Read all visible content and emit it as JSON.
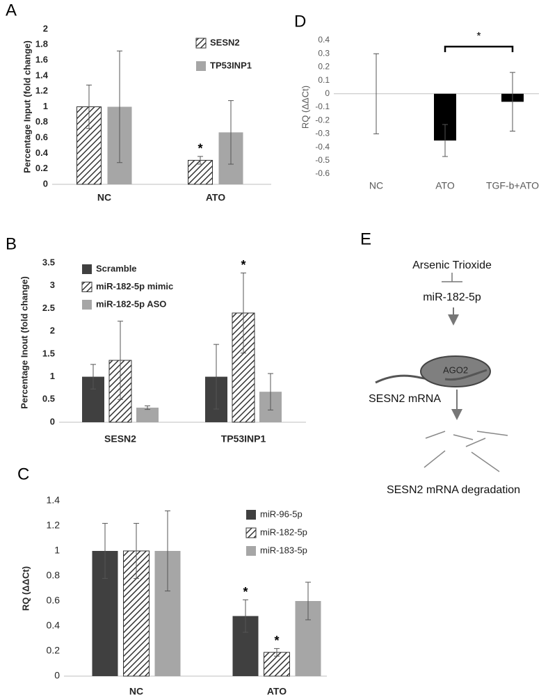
{
  "chart_data": [
    {
      "type": "bar",
      "panel": "A",
      "ylabel": "Percentage Input (fold change)",
      "categories": [
        "NC",
        "ATO"
      ],
      "series": [
        {
          "name": "SESN2",
          "color": "#333333",
          "hatch": true,
          "values": [
            1,
            0.31
          ],
          "errors": [
            0.28,
            0.05
          ]
        },
        {
          "name": "TP53INP1",
          "color": "#a6a6a6",
          "values": [
            1,
            0.67
          ],
          "errors": [
            0.72,
            0.41
          ]
        }
      ],
      "ylim": [
        0,
        2
      ],
      "yticks": [
        0,
        0.2,
        0.4,
        0.6,
        0.8,
        1,
        1.2,
        1.4,
        1.6,
        1.8,
        2
      ],
      "grid": false,
      "annotations": [
        "*"
      ]
    },
    {
      "type": "bar",
      "panel": "B",
      "ylabel": "Percentage Inout (fold change)",
      "categories": [
        "SESN2",
        "TP53INP1"
      ],
      "series": [
        {
          "name": "Scramble",
          "color": "#404040",
          "values": [
            1,
            1
          ],
          "errors": [
            0.27,
            0.71
          ]
        },
        {
          "name": "miR-182-5p mimic",
          "color": "#333333",
          "hatch": true,
          "values": [
            1.36,
            2.4
          ],
          "errors": [
            0.86,
            0.88
          ]
        },
        {
          "name": "miR-182-5p ASO",
          "color": "#a6a6a6",
          "values": [
            0.32,
            0.67
          ],
          "errors": [
            0.04,
            0.4
          ]
        }
      ],
      "ylim": [
        0,
        3.5
      ],
      "yticks": [
        0,
        0.5,
        1,
        1.5,
        2,
        2.5,
        3,
        3.5
      ],
      "grid": false,
      "annotations": [
        "*"
      ]
    },
    {
      "type": "bar",
      "panel": "C",
      "ylabel": "RQ (ΔΔCt)",
      "categories": [
        "NC",
        "ATO"
      ],
      "series": [
        {
          "name": "miR-96-5p",
          "color": "#404040",
          "values": [
            1,
            0.48
          ],
          "errors": [
            0.22,
            0.13
          ]
        },
        {
          "name": "miR-182-5p",
          "color": "#333333",
          "hatch": true,
          "values": [
            1,
            0.19
          ],
          "errors": [
            0.22,
            0.03
          ]
        },
        {
          "name": "miR-183-5p",
          "color": "#a6a6a6",
          "values": [
            1,
            0.6
          ],
          "errors": [
            0.32,
            0.15
          ]
        }
      ],
      "ylim": [
        0,
        1.4
      ],
      "yticks": [
        0,
        0.2,
        0.4,
        0.6,
        0.8,
        1,
        1.2,
        1.4
      ],
      "grid": false,
      "annotations": [
        "*",
        "*"
      ]
    },
    {
      "type": "bar",
      "panel": "D",
      "ylabel": "RQ (ΔΔCt)",
      "categories": [
        "NC",
        "ATO",
        "TGF-b+ATO"
      ],
      "values": [
        0,
        -0.35,
        -0.06
      ],
      "errors": [
        0.3,
        0.12,
        0.22
      ],
      "color": "#000000",
      "ylim": [
        -0.6,
        0.4
      ],
      "yticks": [
        -0.6,
        -0.5,
        -0.4,
        -0.3,
        -0.2,
        -0.1,
        0,
        0.1,
        0.2,
        0.3,
        0.4
      ],
      "grid": false,
      "annotations": [
        "*"
      ]
    }
  ],
  "diagram": {
    "panel": "E",
    "nodes": [
      {
        "label": "Arsenic Trioxide"
      },
      {
        "label": "miR-182-5p"
      },
      {
        "label": "AGO2"
      },
      {
        "label": "SESN2 mRNA"
      },
      {
        "label": "SESN2 mRNA degradation"
      }
    ]
  }
}
